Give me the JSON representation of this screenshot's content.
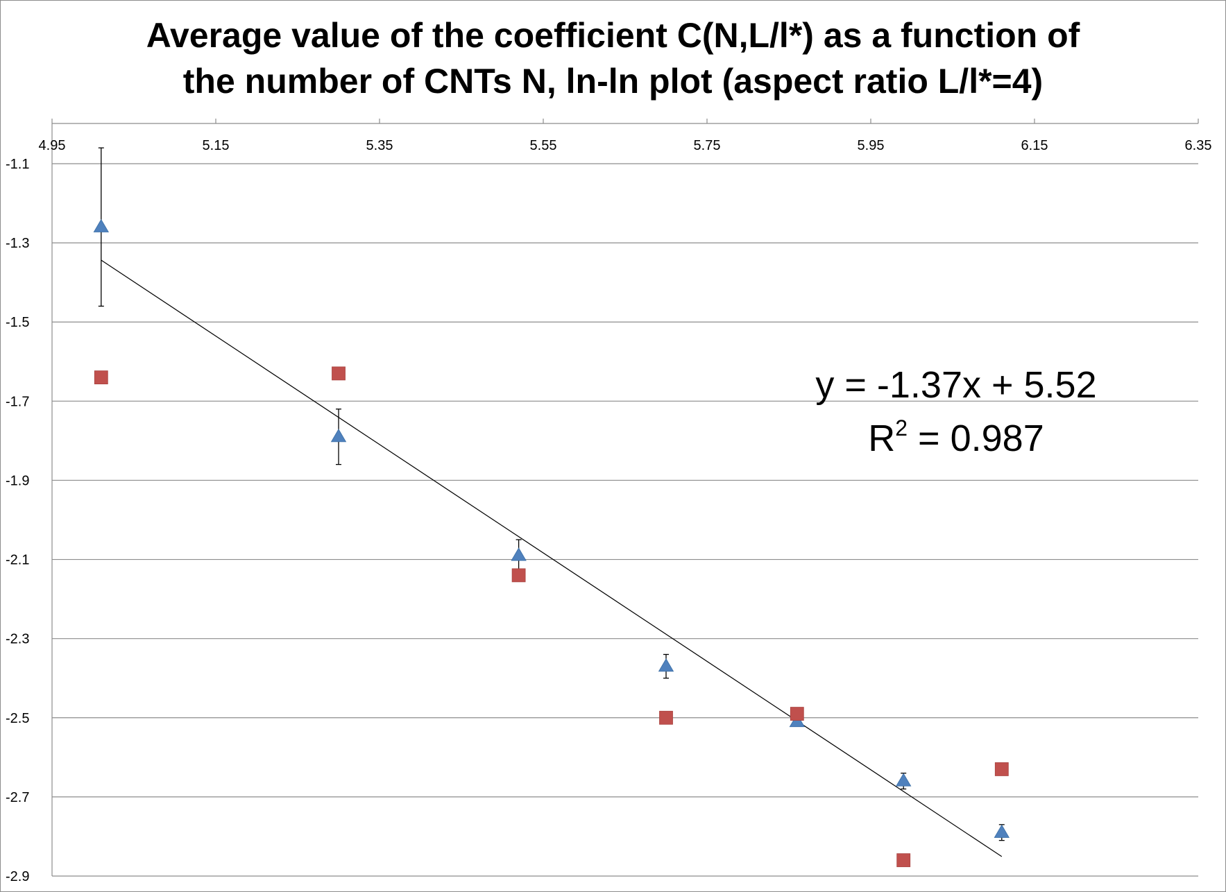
{
  "chart_data": {
    "type": "scatter",
    "title_lines": [
      "Average value of the coefficient C(N,L/l*) as a function of",
      "the number of CNTs N, ln-ln plot (aspect ratio L/l*=4)"
    ],
    "xlabel": "",
    "ylabel": "",
    "xlim": [
      4.95,
      6.35
    ],
    "ylim": [
      -2.9,
      -1.1
    ],
    "x_ticks": [
      4.95,
      5.15,
      5.35,
      5.55,
      5.75,
      5.95,
      6.15,
      6.35
    ],
    "x_tick_labels": [
      "4.95",
      "5.15",
      "5.35",
      "5.55",
      "5.75",
      "5.95",
      "6.15",
      "6.35"
    ],
    "y_ticks": [
      -1.1,
      -1.3,
      -1.5,
      -1.7,
      -1.9,
      -2.1,
      -2.3,
      -2.5,
      -2.7,
      -2.9
    ],
    "y_tick_labels": [
      "-1.1",
      "-1.3",
      "-1.5",
      "-1.7",
      "-1.9",
      "-2.1",
      "-2.3",
      "-2.5",
      "-2.7",
      "-2.9"
    ],
    "grid": "horizontal",
    "x_axis_position": "top",
    "series": [
      {
        "name": "triangles",
        "marker": "triangle",
        "color": "#4f81bd",
        "points": [
          {
            "x": 5.01,
            "y": -1.26,
            "err_low": 0.2,
            "err_high": 0.2
          },
          {
            "x": 5.3,
            "y": -1.79,
            "err_low": 0.07,
            "err_high": 0.07
          },
          {
            "x": 5.52,
            "y": -2.09,
            "err_low": 0.04,
            "err_high": 0.04
          },
          {
            "x": 5.7,
            "y": -2.37,
            "err_low": 0.03,
            "err_high": 0.03
          },
          {
            "x": 5.86,
            "y": -2.51,
            "err_low": 0.01,
            "err_high": 0.01
          },
          {
            "x": 5.99,
            "y": -2.66,
            "err_low": 0.02,
            "err_high": 0.02
          },
          {
            "x": 6.11,
            "y": -2.79,
            "err_low": 0.02,
            "err_high": 0.02
          }
        ]
      },
      {
        "name": "squares",
        "marker": "square",
        "color": "#c0504d",
        "points": [
          {
            "x": 5.01,
            "y": -1.64
          },
          {
            "x": 5.3,
            "y": -1.63
          },
          {
            "x": 5.52,
            "y": -2.14
          },
          {
            "x": 5.7,
            "y": -2.5
          },
          {
            "x": 5.86,
            "y": -2.49
          },
          {
            "x": 5.99,
            "y": -2.86
          },
          {
            "x": 6.11,
            "y": -2.63
          }
        ]
      }
    ],
    "trendline": {
      "series": "triangles",
      "slope": -1.37,
      "intercept": 5.52,
      "x_range": [
        5.01,
        6.11
      ],
      "color": "#000000",
      "equation_text": "y = -1.37x + 5.52",
      "r2_prefix": "R",
      "r2_super": "2",
      "r2_suffix": " = 0.987"
    },
    "colors": {
      "grid": "#8c8c8c",
      "axis": "#8c8c8c",
      "triangle": "#4f81bd",
      "square": "#c0504d"
    }
  }
}
